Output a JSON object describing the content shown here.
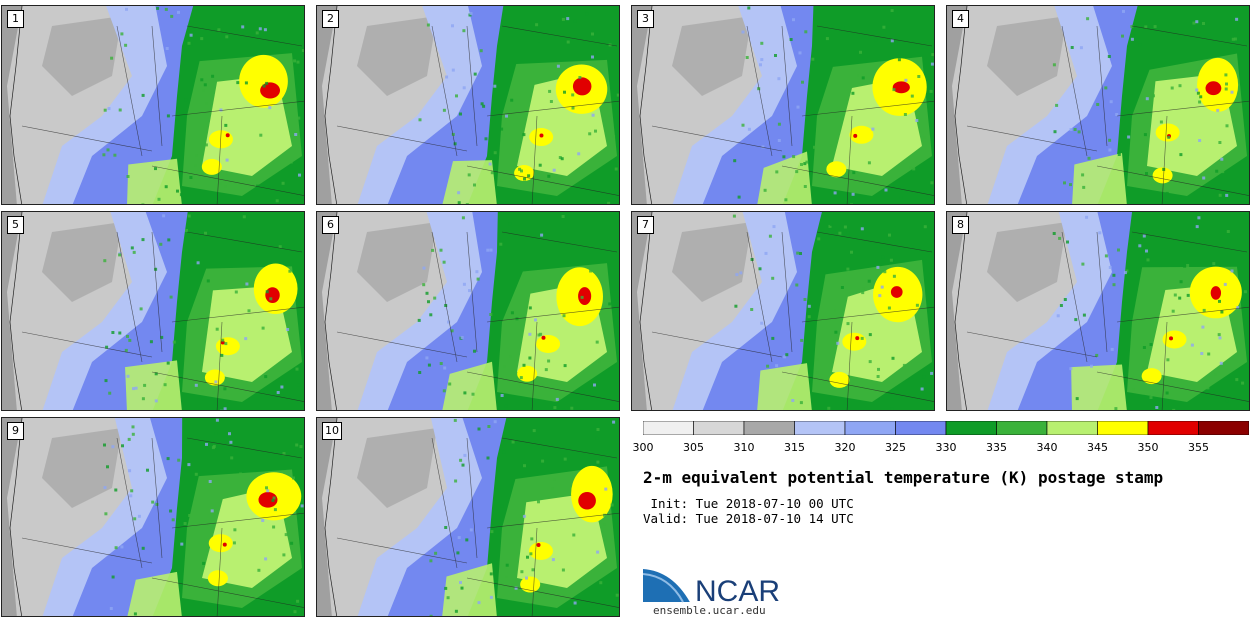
{
  "panels": [
    {
      "label": "1"
    },
    {
      "label": "2"
    },
    {
      "label": "3"
    },
    {
      "label": "4"
    },
    {
      "label": "5"
    },
    {
      "label": "6"
    },
    {
      "label": "7"
    },
    {
      "label": "8"
    },
    {
      "label": "9"
    },
    {
      "label": "10"
    }
  ],
  "colorbar": {
    "ticks": [
      "300",
      "305",
      "310",
      "315",
      "320",
      "325",
      "330",
      "335",
      "340",
      "345",
      "350",
      "355"
    ],
    "colors": [
      "#f0f0f0",
      "#d7d7d7",
      "#a8a8a8",
      "#b4c4f6",
      "#8fa6f4",
      "#7388f0",
      "#0f9c28",
      "#3ab23a",
      "#b8f070",
      "#ffff00",
      "#e10000",
      "#8b0000"
    ]
  },
  "title": "2-m equivalent potential temperature (K) postage stamp",
  "init": " Init: Tue 2018-07-10 00 UTC",
  "valid": "Valid: Tue 2018-07-10 14 UTC",
  "logo": {
    "text": "NCAR",
    "url": "ensemble.ucar.edu"
  }
}
